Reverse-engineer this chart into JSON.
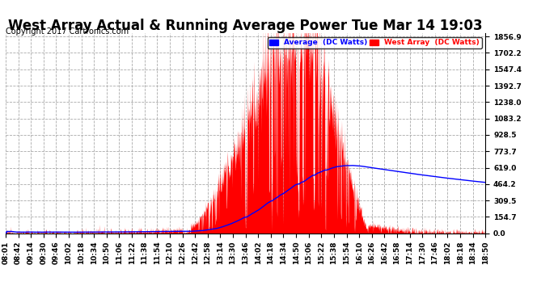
{
  "title": "West Array Actual & Running Average Power Tue Mar 14 19:03",
  "copyright": "Copyright 2017 Cartronics.com",
  "ylabel_ticks": [
    0.0,
    154.7,
    309.5,
    464.2,
    619.0,
    773.7,
    928.5,
    1083.2,
    1238.0,
    1392.7,
    1547.4,
    1702.2,
    1856.9
  ],
  "x_labels": [
    "08:01",
    "08:42",
    "09:14",
    "09:30",
    "09:46",
    "10:02",
    "10:18",
    "10:34",
    "10:50",
    "11:06",
    "11:22",
    "11:38",
    "11:54",
    "12:10",
    "12:26",
    "12:42",
    "12:58",
    "13:14",
    "13:30",
    "13:46",
    "14:02",
    "14:18",
    "14:34",
    "14:50",
    "15:06",
    "15:22",
    "15:38",
    "15:54",
    "16:10",
    "16:26",
    "16:42",
    "16:58",
    "17:14",
    "17:30",
    "17:46",
    "18:02",
    "18:18",
    "18:34",
    "18:50"
  ],
  "legend_labels": [
    "Average  (DC Watts)",
    "West Array  (DC Watts)"
  ],
  "legend_colors": [
    "#0000ff",
    "#ff0000"
  ],
  "bg_color": "#ffffff",
  "grid_color": "#aaaaaa",
  "title_fontsize": 12,
  "tick_label_fontsize": 6.5,
  "copyright_fontsize": 7,
  "ymax": 1856.9,
  "ymin": 0.0
}
